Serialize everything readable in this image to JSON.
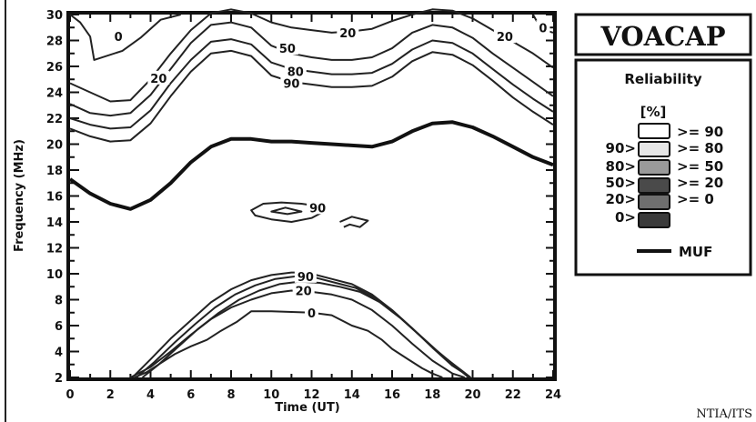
{
  "brand": {
    "title": "VOACAP",
    "credit": "NTIA/ITS"
  },
  "legend": {
    "title": "Reliability",
    "unit_label": "[%]",
    "right_labels": [
      ">= 90",
      ">= 80",
      ">= 50",
      ">= 20",
      ">= 0"
    ],
    "left_labels": [
      "90>",
      "80>",
      "50>",
      "20>",
      "0>"
    ],
    "muf_label": "MUF"
  },
  "chart_data": {
    "type": "contour",
    "xlabel": "Time (UT)",
    "ylabel": "Frequency (MHz)",
    "xlim": [
      0,
      24
    ],
    "ylim": [
      2,
      30
    ],
    "xticks": [
      0,
      2,
      4,
      6,
      8,
      10,
      12,
      14,
      16,
      18,
      20,
      22,
      24
    ],
    "yticks": [
      2,
      4,
      6,
      8,
      10,
      12,
      14,
      16,
      18,
      20,
      22,
      24,
      26,
      28,
      30
    ],
    "muf": {
      "name": "MUF",
      "x": [
        0,
        1,
        2,
        3,
        4,
        5,
        6,
        7,
        8,
        9,
        10,
        11,
        12,
        13,
        14,
        15,
        16,
        17,
        18,
        19,
        20,
        21,
        22,
        23,
        24
      ],
      "y": [
        17.3,
        16.2,
        15.4,
        15.0,
        15.7,
        17.0,
        18.6,
        19.8,
        20.4,
        20.4,
        20.2,
        20.2,
        20.1,
        20.0,
        19.9,
        19.8,
        20.2,
        21.0,
        21.6,
        21.7,
        21.3,
        20.6,
        19.8,
        19.0,
        18.4
      ]
    },
    "contours": [
      {
        "name": "0",
        "label_at": [
          {
            "x": 2.4,
            "y": 28.3
          }
        ],
        "x": [
          0,
          0.5,
          1,
          1.2,
          2.6,
          3.5,
          4.5,
          5.5
        ],
        "y": [
          30,
          29.4,
          28.3,
          26.5,
          27.2,
          28.2,
          29.6,
          30
        ],
        "closed": false
      },
      {
        "name": "0",
        "label_at": [
          {
            "x": 23.5,
            "y": 29.0
          }
        ],
        "x": [
          23.0,
          23.4,
          24
        ],
        "y": [
          30,
          28.9,
          28.6
        ],
        "closed": false
      },
      {
        "name": "20",
        "label_at": [
          {
            "x": 4.4,
            "y": 25.1
          },
          {
            "x": 13.8,
            "y": 28.6
          },
          {
            "x": 21.6,
            "y": 28.3
          }
        ],
        "x": [
          0,
          1,
          2,
          3,
          4,
          5,
          6,
          7,
          8,
          9,
          10,
          11,
          12,
          13,
          14,
          15,
          16,
          17,
          18,
          19,
          20,
          21,
          22,
          23,
          24
        ],
        "y": [
          24.7,
          24.0,
          23.3,
          23.4,
          25.0,
          27.0,
          28.8,
          30.1,
          30.4,
          30.1,
          29.4,
          29.0,
          28.8,
          28.6,
          28.7,
          28.9,
          29.5,
          30.0,
          30.4,
          30.3,
          29.7,
          28.8,
          27.9,
          27.0,
          25.9
        ],
        "closed": false
      },
      {
        "name": "50",
        "label_at": [
          {
            "x": 10.8,
            "y": 27.4
          }
        ],
        "x": [
          0,
          1,
          2,
          3,
          4,
          5,
          6,
          7,
          8,
          9,
          10,
          11,
          12,
          13,
          14,
          15,
          16,
          17,
          18,
          19,
          20,
          21,
          22,
          23,
          24
        ],
        "y": [
          23.1,
          22.4,
          22.2,
          22.4,
          23.8,
          25.8,
          27.8,
          29.2,
          29.4,
          29.0,
          27.6,
          27.0,
          26.7,
          26.5,
          26.5,
          26.7,
          27.4,
          28.6,
          29.2,
          29.0,
          28.2,
          27.0,
          25.9,
          24.8,
          23.7
        ],
        "closed": false
      },
      {
        "name": "80",
        "label_at": [
          {
            "x": 11.2,
            "y": 25.6
          }
        ],
        "x": [
          0,
          1,
          2,
          3,
          4,
          5,
          6,
          7,
          8,
          9,
          10,
          11,
          12,
          13,
          14,
          15,
          16,
          17,
          18,
          19,
          20,
          21,
          22,
          23,
          24
        ],
        "y": [
          22.0,
          21.5,
          21.2,
          21.3,
          22.6,
          24.7,
          26.5,
          27.9,
          28.1,
          27.7,
          26.3,
          25.8,
          25.6,
          25.4,
          25.4,
          25.5,
          26.2,
          27.3,
          28.0,
          27.8,
          27.0,
          25.8,
          24.6,
          23.5,
          22.5
        ],
        "closed": false
      },
      {
        "name": "90",
        "label_at": [
          {
            "x": 11.0,
            "y": 24.7
          },
          {
            "x": 12.3,
            "y": 15.1
          }
        ],
        "x": [
          0,
          1,
          2,
          3,
          4,
          5,
          6,
          7,
          8,
          9,
          10,
          11,
          12,
          13,
          14,
          15,
          16,
          17,
          18,
          19,
          20,
          21,
          22,
          23,
          24
        ],
        "y": [
          21.2,
          20.6,
          20.2,
          20.3,
          21.6,
          23.7,
          25.6,
          27.0,
          27.2,
          26.8,
          25.3,
          24.8,
          24.6,
          24.4,
          24.4,
          24.5,
          25.2,
          26.4,
          27.1,
          26.9,
          26.1,
          24.9,
          23.6,
          22.5,
          21.5
        ],
        "closed": false
      },
      {
        "name": "90",
        "x": [
          9.0,
          9.6,
          10.5,
          11.5,
          12.4,
          12.6,
          12.0,
          11.0,
          10.0,
          9.2
        ],
        "y": [
          14.9,
          15.4,
          15.5,
          15.4,
          15.2,
          14.8,
          14.3,
          14.0,
          14.2,
          14.5
        ],
        "closed": true
      },
      {
        "name": "90",
        "x": [
          10.0,
          10.7,
          11.5,
          10.8
        ],
        "y": [
          14.8,
          15.1,
          14.8,
          14.6
        ],
        "closed": true
      },
      {
        "name": "",
        "x": [
          13.4,
          14.0,
          14.8,
          14.4,
          13.9,
          13.6
        ],
        "y": [
          14.0,
          14.4,
          14.1,
          13.6,
          13.8,
          13.6
        ],
        "closed": false
      },
      {
        "name": "0",
        "label_at": [
          {
            "x": 12.0,
            "y": 7.0
          }
        ],
        "x": [
          3.2,
          3.8,
          4.5,
          5.2,
          6.0,
          6.8,
          7.5,
          8.3,
          9.0,
          10.0,
          12.0,
          13.0,
          14.0,
          14.8,
          15.5,
          16.0,
          16.8,
          17.5,
          18.0,
          18.5
        ],
        "y": [
          2.0,
          2.4,
          3.1,
          3.8,
          4.4,
          4.9,
          5.6,
          6.3,
          7.1,
          7.1,
          7.0,
          6.8,
          6.0,
          5.6,
          4.9,
          4.2,
          3.4,
          2.7,
          2.3,
          2.0
        ],
        "closed": false
      },
      {
        "name": "20",
        "label_at": [
          {
            "x": 11.6,
            "y": 8.7
          }
        ],
        "x": [
          3.0,
          4.0,
          5.0,
          6.0,
          7.0,
          8.0,
          9.0,
          10.0,
          11.0,
          12.0,
          13.0,
          14.0,
          15.0,
          16.0,
          17.0,
          18.0,
          19.0,
          19.6
        ],
        "y": [
          2.0,
          2.8,
          4.0,
          5.3,
          6.5,
          7.4,
          8.0,
          8.5,
          8.7,
          8.6,
          8.4,
          8.0,
          7.2,
          6.0,
          4.6,
          3.3,
          2.3,
          2.0
        ],
        "closed": false
      },
      {
        "name": "50",
        "x": [
          3.6,
          4.4,
          5.4,
          6.4,
          7.4,
          8.4,
          9.4,
          10.4,
          11.4,
          12.4,
          13.4,
          14.4,
          15.4,
          16.4,
          17.4,
          18.4,
          19.4,
          19.9
        ],
        "y": [
          2.0,
          3.0,
          4.4,
          5.8,
          7.0,
          8.0,
          8.7,
          9.2,
          9.4,
          9.3,
          9.0,
          8.6,
          7.8,
          6.6,
          5.2,
          3.8,
          2.6,
          2.0
        ],
        "closed": false
      },
      {
        "name": "80",
        "x": [
          3.3,
          4.2,
          5.2,
          6.2,
          7.2,
          8.2,
          9.2,
          10.2,
          11.2,
          12.2,
          13.2,
          14.2,
          15.2,
          16.2,
          17.2,
          18.2,
          19.2,
          19.8
        ],
        "y": [
          2.0,
          3.2,
          4.7,
          6.1,
          7.4,
          8.4,
          9.1,
          9.6,
          9.8,
          9.7,
          9.3,
          8.9,
          8.1,
          6.9,
          5.5,
          4.1,
          2.8,
          2.0
        ],
        "closed": false
      },
      {
        "name": "90",
        "label_at": [
          {
            "x": 11.7,
            "y": 9.8
          }
        ],
        "x": [
          3.1,
          4.0,
          5.0,
          6.0,
          7.0,
          8.0,
          9.0,
          10.0,
          11.0,
          11.6,
          12.0,
          13.0,
          14.0,
          15.0,
          16.0,
          17.0,
          18.0,
          19.0,
          19.9
        ],
        "y": [
          2.0,
          3.4,
          5.0,
          6.4,
          7.8,
          8.8,
          9.5,
          9.9,
          10.1,
          10.1,
          10.0,
          9.6,
          9.2,
          8.4,
          7.2,
          5.8,
          4.3,
          2.9,
          2.0
        ],
        "closed": false
      }
    ]
  }
}
